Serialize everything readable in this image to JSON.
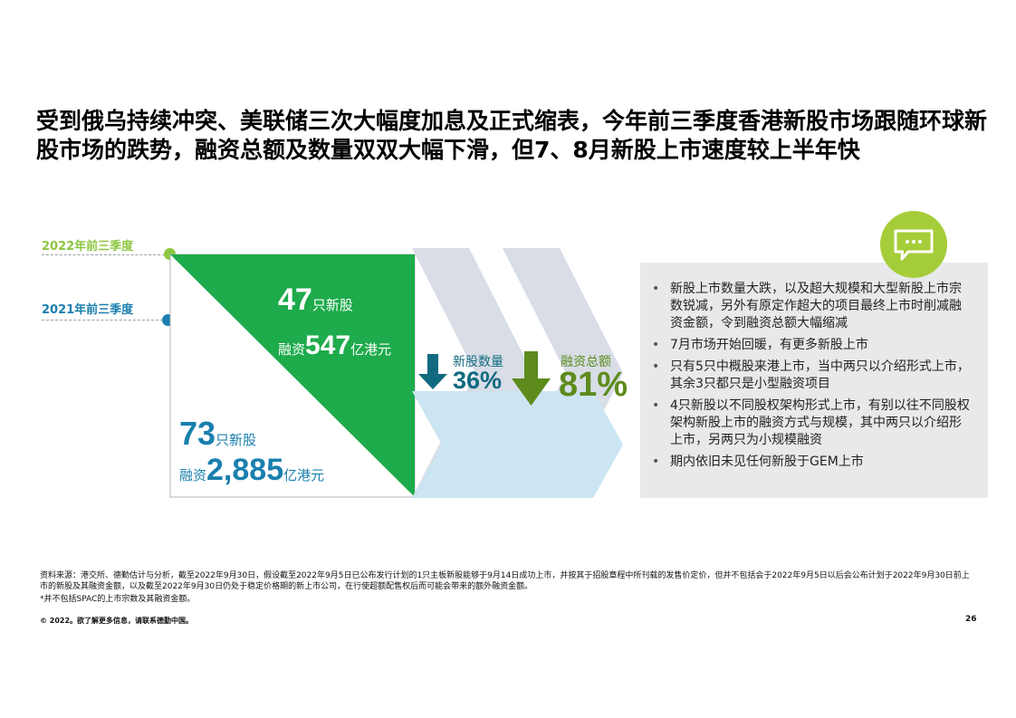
{
  "title": "受到俄乌持续冲突、美联储三次大幅度加息及正式缩表，今年前三季度香港新股市场跟随环球新股市场的跌势，融资总额及数量双双大幅下滑，但7、8月新股上市速度较上半年快",
  "legend": {
    "y2022": "2022年前三季度",
    "y2021": "2021年前三季度"
  },
  "colors": {
    "green_2022": "#1eab4b",
    "dot_2022": "#8cc63f",
    "blue_2021": "#1a7fae",
    "teal_down": "#116a80",
    "olive_down": "#5d8b1c",
    "chevron_back": "#d8dde6",
    "chevron_front": "#cbe5f2",
    "panel_bg": "#e8e9ea",
    "bubble": "#a5cd39"
  },
  "stats_2022": {
    "count": "47",
    "count_unit": "只新股",
    "fund_prefix": "融资",
    "fund_value": "547",
    "fund_unit": "亿港元"
  },
  "stats_2021": {
    "count": "73",
    "count_unit": "只新股",
    "fund_prefix": "融资",
    "fund_value": "2,885",
    "fund_unit": "亿港元"
  },
  "changes": {
    "ipo_count_label": "新股数量",
    "ipo_count_pct": "36%",
    "funds_label": "融资总额",
    "funds_pct": "81%"
  },
  "bubble_icon": "chat-bubble-icon",
  "bullets": [
    "新股上市数量大跌，以及超大规模和大型新股上市宗数锐减，另外有原定作超大的项目最终上市时削减融资金额，令到融资总额大幅缩减",
    "7月市场开始回暖，有更多新股上市",
    "只有5只中概股来港上市，当中两只以介绍形式上市，其余3只都只是小型融资项目",
    "4只新股以不同股权架构形式上市，有别以往不同股权架构新股上市的融资方式与规模，其中两只以介绍形上市，另两只为小规模融资",
    "期内依旧未见任何新股于GEM上市"
  ],
  "footer": {
    "source": "资料来源：港交所、德勤估计与分析，截至2022年9月30日，假设截至2022年9月5日已公布发行计划的1只主板新股能够于9月14日成功上市，并按其于招股章程中所刊载的发售价定价，但并不包括会于2022年9月5日以后会公布计划于2022年9月30日前上市的新股及其融资金额，以及截至2022年9月30日仍处于稳定价格期的新上市公司，在行使超额配售权后而可能会带来的额外融资金额。",
    "note": "*并不包括SPAC的上市宗数及其融资金额。",
    "copyright": "© 2022。欲了解更多信息，请联系德勤中国。",
    "page": "26"
  }
}
